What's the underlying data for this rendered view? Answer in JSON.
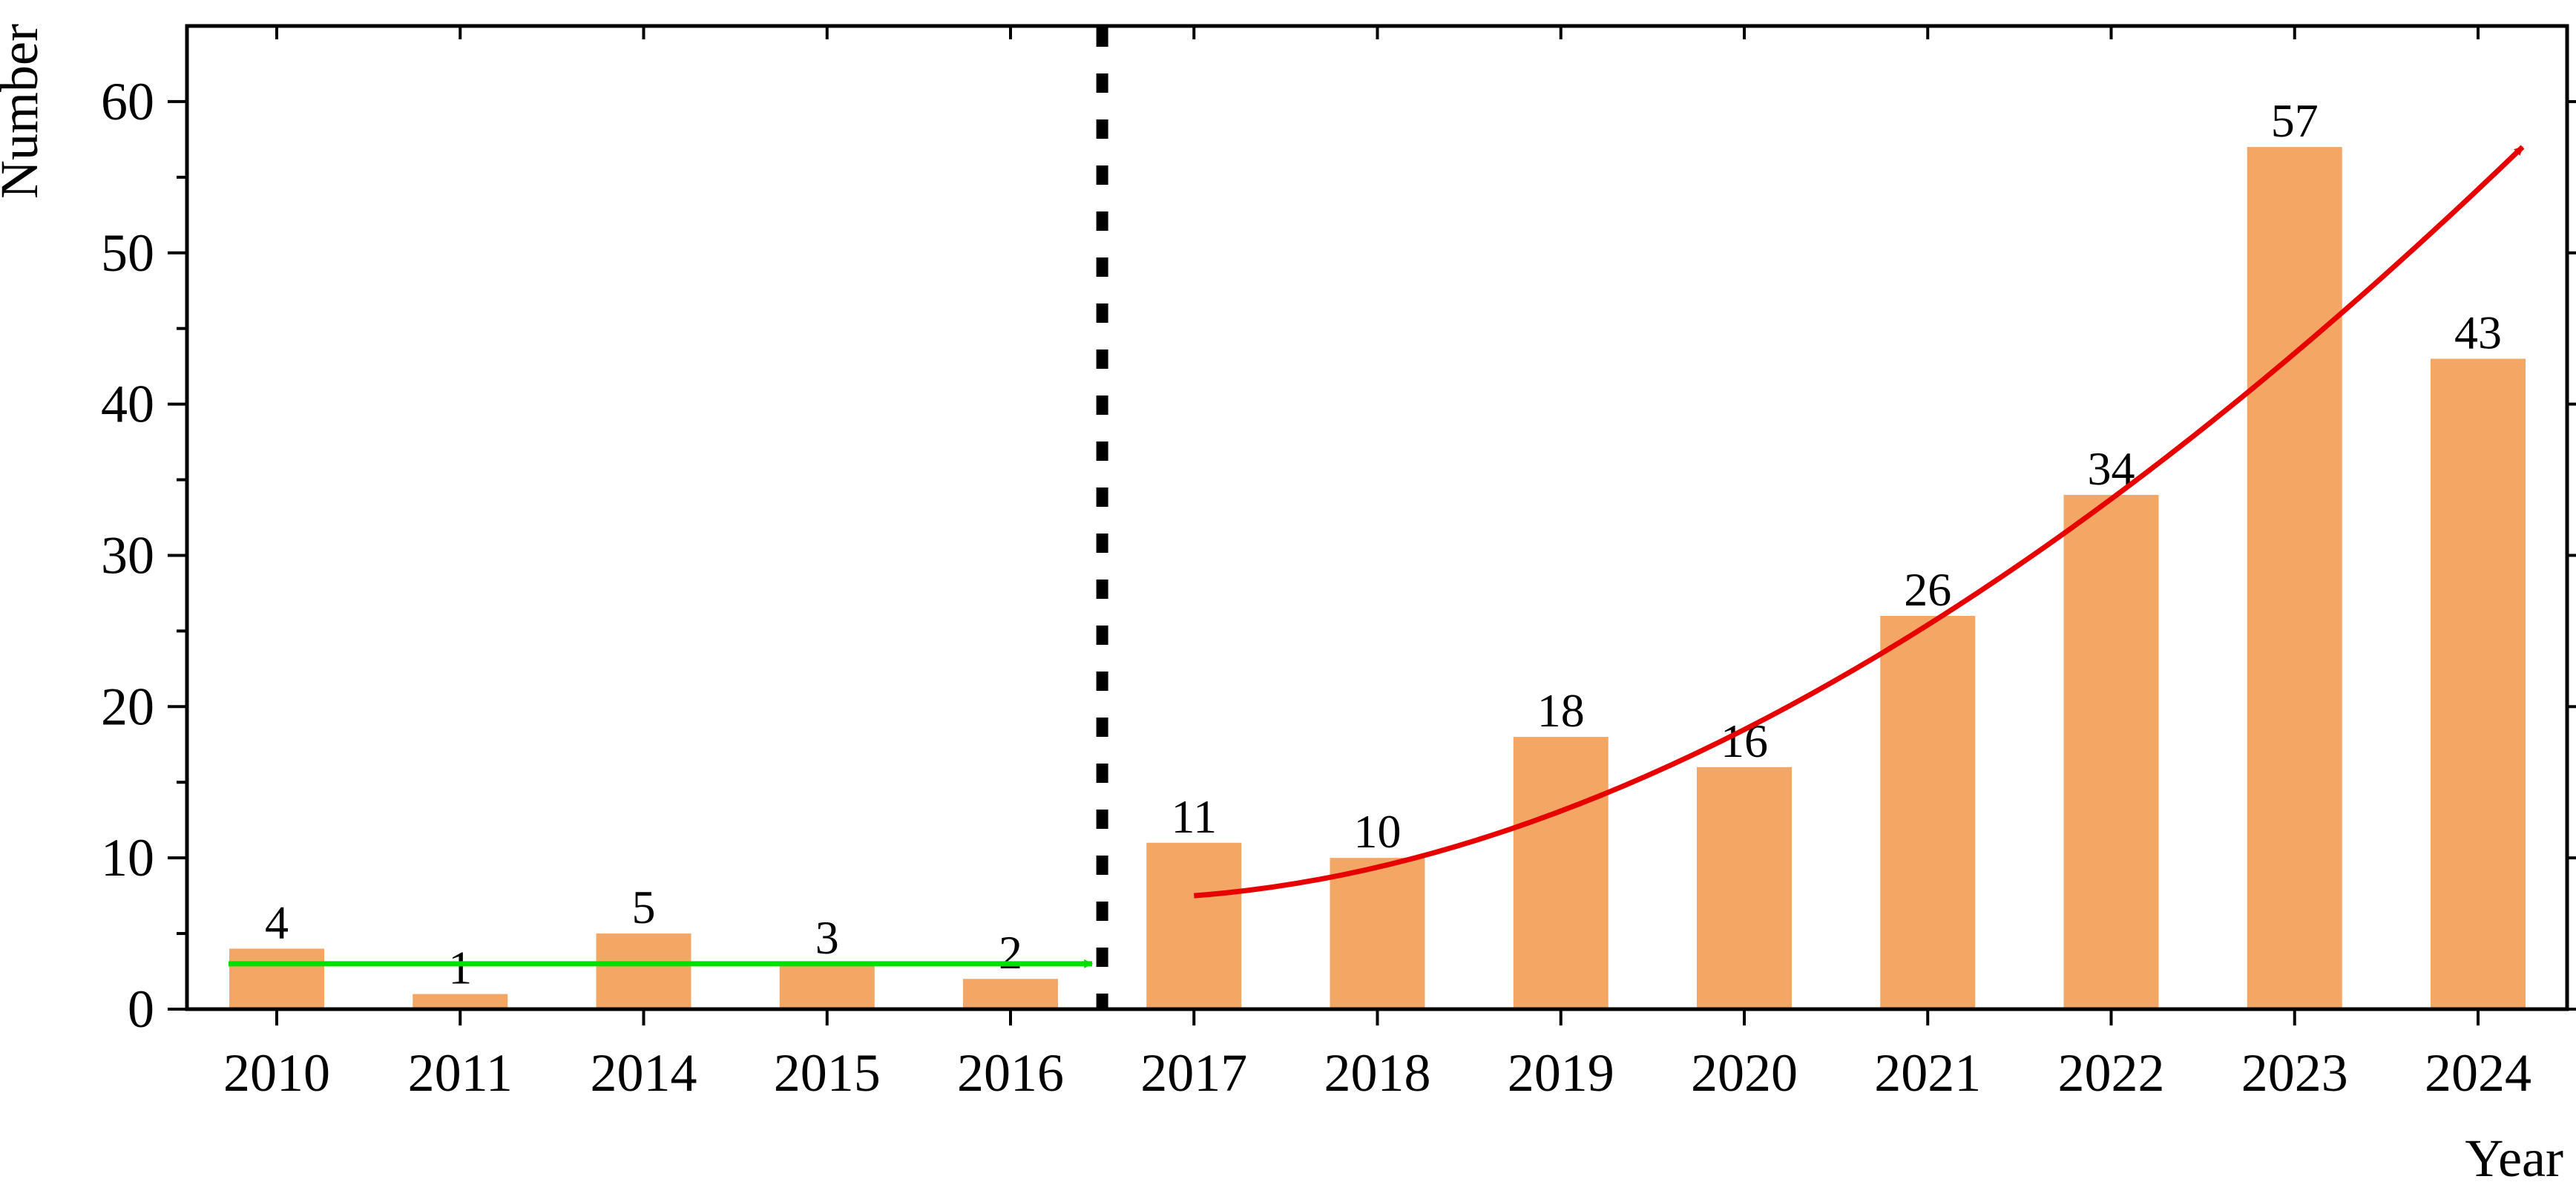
{
  "chart_data": {
    "type": "bar",
    "xlabel": "Year",
    "ylabel": "Number",
    "categories": [
      "2010",
      "2011",
      "2014",
      "2015",
      "2016",
      "2017",
      "2018",
      "2019",
      "2020",
      "2021",
      "2022",
      "2023",
      "2024"
    ],
    "values": [
      4,
      1,
      5,
      3,
      2,
      11,
      10,
      18,
      16,
      26,
      34,
      57,
      43
    ],
    "value_labels": [
      "4",
      "1",
      "5",
      "3",
      "2",
      "11",
      "10",
      "18",
      "16",
      "26",
      "34",
      "57",
      "43"
    ],
    "ylim": [
      0,
      65
    ],
    "yticks": [
      0,
      10,
      20,
      30,
      40,
      50,
      60
    ],
    "ytick_labels": [
      "0",
      "10",
      "20",
      "30",
      "40",
      "50",
      "60"
    ],
    "grid": false,
    "legend": "none",
    "bar_color": "#F4A765",
    "annotations": [
      {
        "type": "vertical-dashed-line",
        "between": [
          "2016",
          "2017"
        ],
        "color": "#000000"
      },
      {
        "type": "trend-arrow",
        "color": "#00E000",
        "from": {
          "x": "2010",
          "y": 3
        },
        "to": {
          "x": "2016",
          "y": 3
        }
      },
      {
        "type": "trend-arrow",
        "color": "#E60000",
        "from": {
          "x": "2017",
          "y": 7.5
        },
        "to": {
          "x": "2024",
          "y": 57
        }
      }
    ]
  }
}
